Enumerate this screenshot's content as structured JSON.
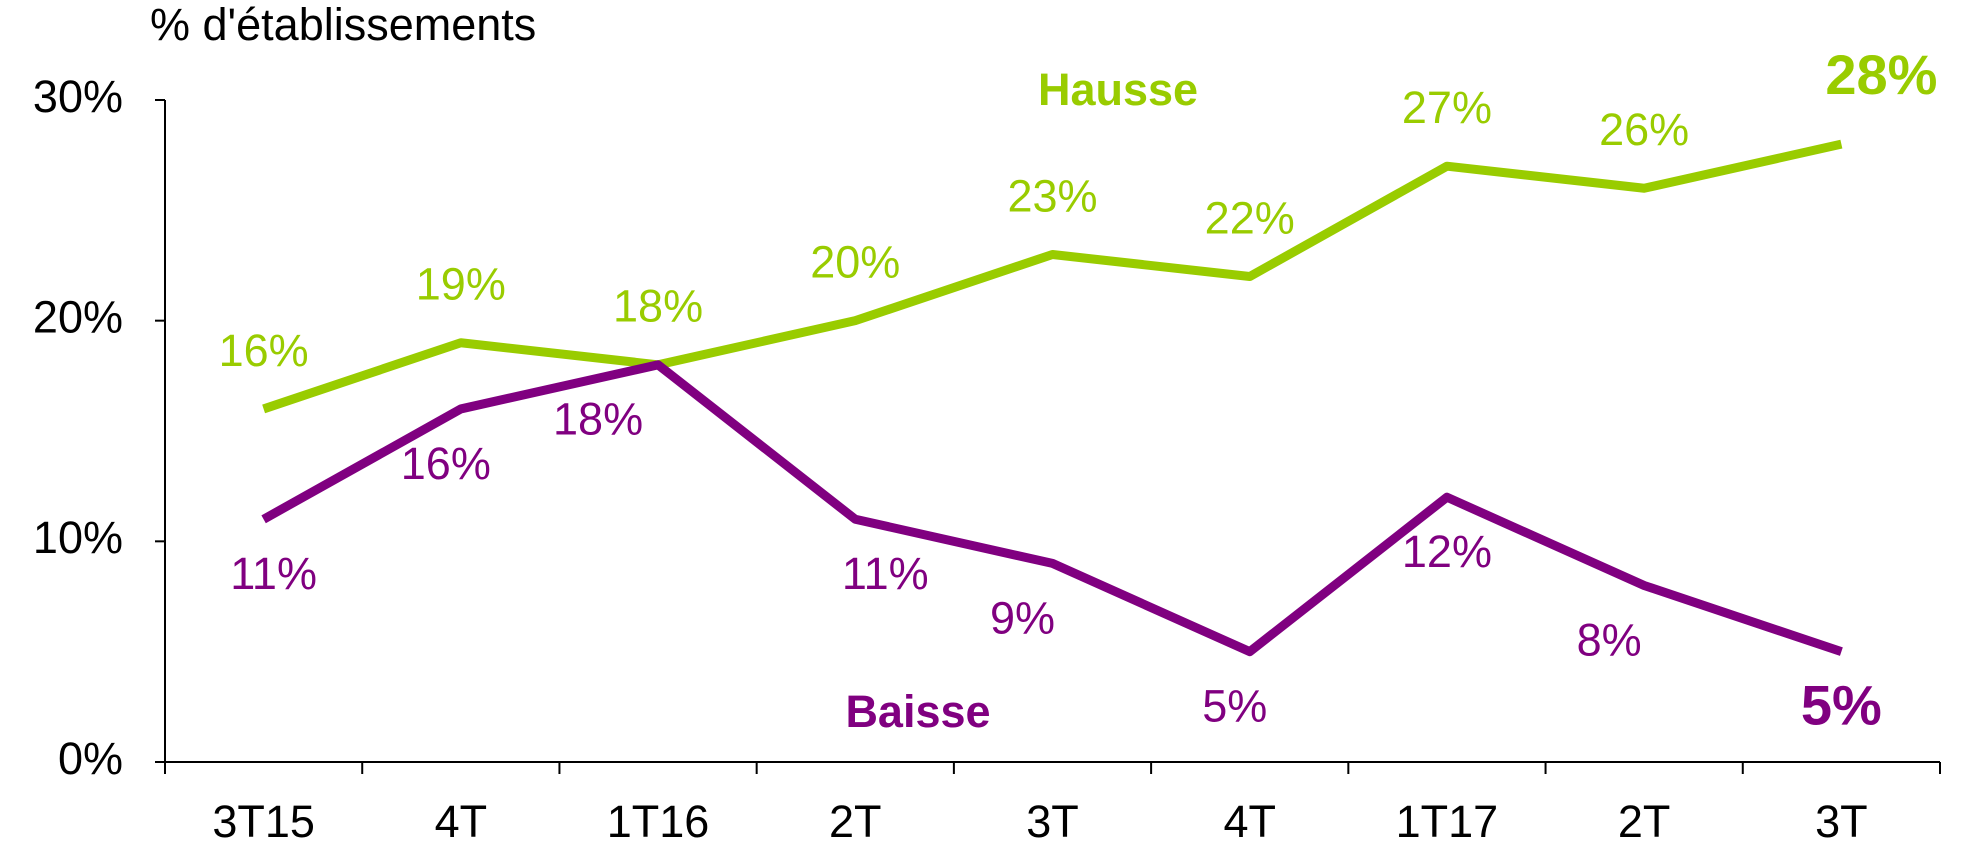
{
  "chart_data": {
    "type": "line",
    "y_label": "% d'établissements",
    "categories": [
      "3T15",
      "4T",
      "1T16",
      "2T",
      "3T",
      "4T",
      "1T17",
      "2T",
      "3T"
    ],
    "ylim": [
      0,
      30
    ],
    "yticks": [
      {
        "value": 0,
        "label": "0%"
      },
      {
        "value": 10,
        "label": "10%"
      },
      {
        "value": 20,
        "label": "20%"
      },
      {
        "value": 30,
        "label": "30%"
      }
    ],
    "series": [
      {
        "name": "Hausse",
        "color": "#99cc00",
        "values": [
          16,
          19,
          18,
          20,
          23,
          22,
          27,
          26,
          28
        ],
        "value_labels": [
          "16%",
          "19%",
          "18%",
          "20%",
          "23%",
          "22%",
          "27%",
          "26%",
          "28%"
        ]
      },
      {
        "name": "Baisse",
        "color": "#800080",
        "values": [
          11,
          16,
          18,
          11,
          9,
          5,
          12,
          8,
          5
        ],
        "value_labels": [
          "11%",
          "16%",
          "18%",
          "11%",
          "9%",
          "5%",
          "12%",
          "8%",
          "5%"
        ]
      }
    ]
  }
}
